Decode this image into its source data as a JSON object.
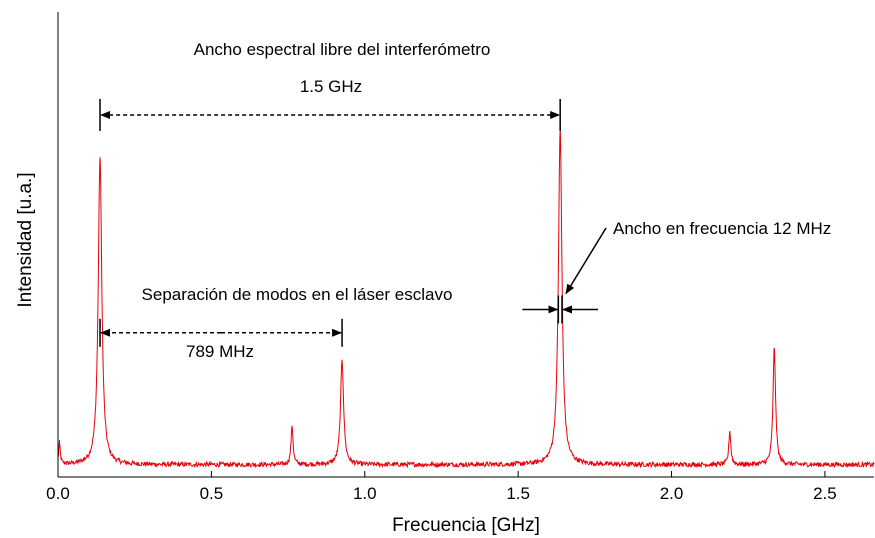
{
  "chart_data": {
    "type": "line",
    "xlabel": "Frecuencia [GHz]",
    "ylabel": "Intensidad [u.a.]",
    "xlim": [
      0.0,
      2.66
    ],
    "ylim": [
      0.0,
      1.0
    ],
    "x_ticks": [
      {
        "value": 0.0,
        "label": "0.0"
      },
      {
        "value": 0.5,
        "label": "0.5"
      },
      {
        "value": 1.0,
        "label": "1.0"
      },
      {
        "value": 1.5,
        "label": "1.5"
      },
      {
        "value": 2.0,
        "label": "2.0"
      },
      {
        "value": 2.5,
        "label": "2.5"
      }
    ],
    "line_color": "#e8000b",
    "noise_level": 0.012,
    "peaks": [
      {
        "x": 0.005,
        "y": 0.055,
        "width": 0.003
      },
      {
        "x": 0.137,
        "y": 0.79,
        "width": 0.007
      },
      {
        "x": 0.763,
        "y": 0.1,
        "width": 0.004
      },
      {
        "x": 0.926,
        "y": 0.27,
        "width": 0.006
      },
      {
        "x": 1.637,
        "y": 0.86,
        "width": 0.007
      },
      {
        "x": 2.19,
        "y": 0.085,
        "width": 0.004
      },
      {
        "x": 2.335,
        "y": 0.3,
        "width": 0.005
      }
    ],
    "annotations": {
      "fsr": {
        "text": "Ancho espectral libre del interferómetro",
        "value_text": "1.5 GHz",
        "x1": 0.137,
        "x2": 1.637,
        "y": 0.905
      },
      "mode_sep": {
        "text": "Separación de modos en el láser esclavo",
        "value_text": "789 MHz",
        "x1": 0.137,
        "x2": 0.926,
        "y": 0.345
      },
      "linewidth": {
        "text": "Ancho en frecuencia 12 MHz",
        "x1": 1.631,
        "x2": 1.643,
        "y": 0.405
      }
    }
  }
}
